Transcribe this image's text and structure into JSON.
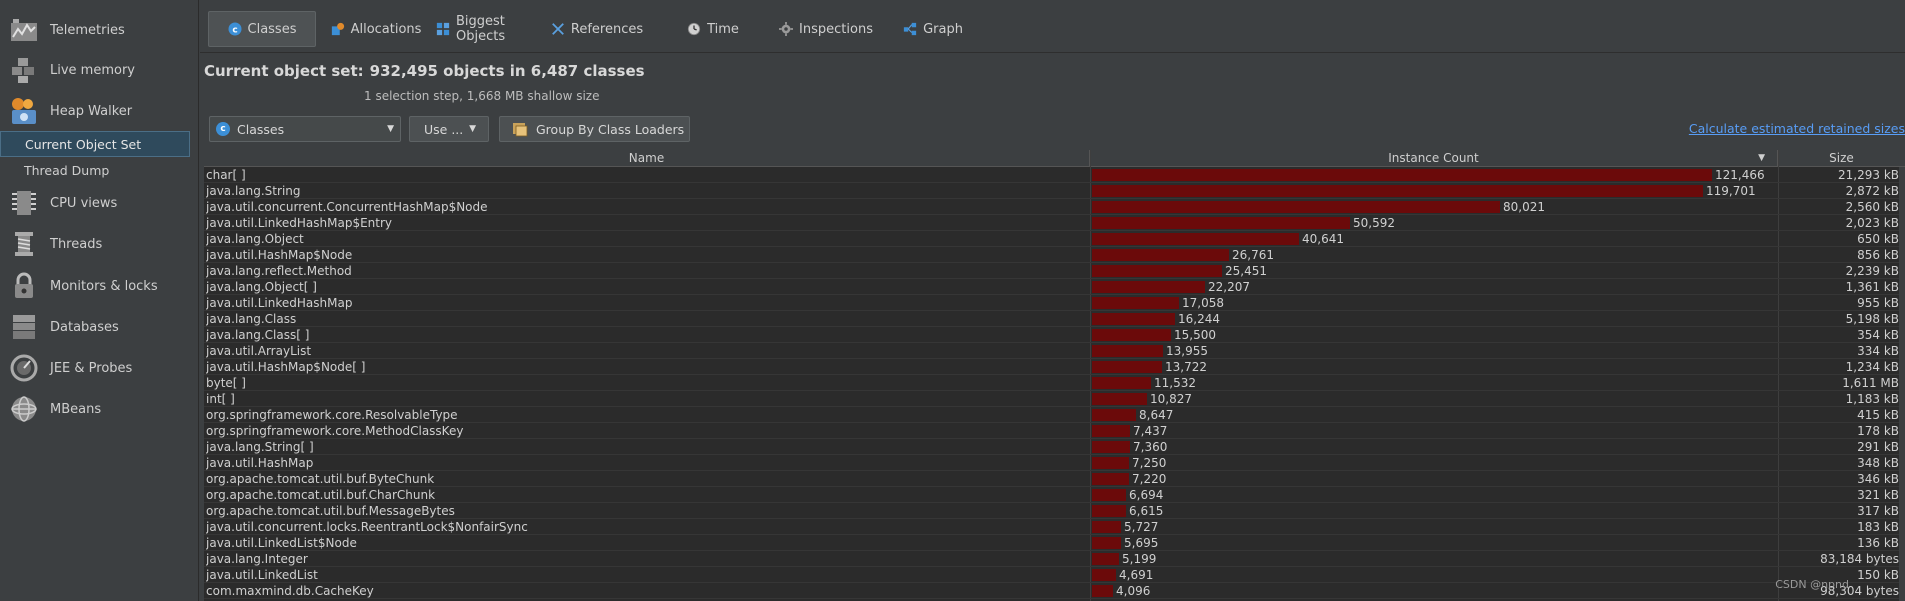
{
  "sidebar": {
    "items": [
      {
        "label": "Telemetries",
        "icon": "telemetries-icon"
      },
      {
        "label": "Live memory",
        "icon": "live-memory-icon"
      },
      {
        "label": "Heap Walker",
        "icon": "heap-walker-icon"
      },
      {
        "label": "CPU views",
        "icon": "cpu-views-icon"
      },
      {
        "label": "Threads",
        "icon": "threads-icon"
      },
      {
        "label": "Monitors & locks",
        "icon": "monitors-locks-icon"
      },
      {
        "label": "Databases",
        "icon": "databases-icon"
      },
      {
        "label": "JEE & Probes",
        "icon": "jee-probes-icon"
      },
      {
        "label": "MBeans",
        "icon": "mbeans-icon"
      }
    ],
    "subitems": [
      {
        "label": "Current Object Set",
        "selected": true
      },
      {
        "label": "Thread Dump",
        "selected": false
      }
    ]
  },
  "tabs": [
    {
      "label": "Classes",
      "icon": "classes-icon",
      "active": true
    },
    {
      "label": "Allocations",
      "icon": "allocations-icon"
    },
    {
      "label": "Biggest Objects",
      "icon": "biggest-objects-icon"
    },
    {
      "label": "References",
      "icon": "references-icon"
    },
    {
      "label": "Time",
      "icon": "time-icon"
    },
    {
      "label": "Inspections",
      "icon": "inspections-icon"
    },
    {
      "label": "Graph",
      "icon": "graph-icon"
    }
  ],
  "header": {
    "title_prefix": "Current object set:",
    "title_value": "932,495 objects in 6,487 classes",
    "subtitle": "1 selection step, 1,668 MB shallow size"
  },
  "toolbar": {
    "view_combo": "Classes",
    "use_button": "Use ...",
    "group_button": "Group By Class Loaders",
    "calc_link": "Calculate estimated retained sizes"
  },
  "table": {
    "columns": [
      "Name",
      "Instance Count",
      "Size"
    ],
    "max_count": 121466,
    "rows": [
      {
        "name": "char[ ]",
        "count": 121466,
        "count_label": "121,466",
        "size": "21,293 kB"
      },
      {
        "name": "java.lang.String",
        "count": 119701,
        "count_label": "119,701",
        "size": "2,872 kB"
      },
      {
        "name": "java.util.concurrent.ConcurrentHashMap$Node",
        "count": 80021,
        "count_label": "80,021",
        "size": "2,560 kB"
      },
      {
        "name": "java.util.LinkedHashMap$Entry",
        "count": 50592,
        "count_label": "50,592",
        "size": "2,023 kB"
      },
      {
        "name": "java.lang.Object",
        "count": 40641,
        "count_label": "40,641",
        "size": "650 kB"
      },
      {
        "name": "java.util.HashMap$Node",
        "count": 26761,
        "count_label": "26,761",
        "size": "856 kB"
      },
      {
        "name": "java.lang.reflect.Method",
        "count": 25451,
        "count_label": "25,451",
        "size": "2,239 kB"
      },
      {
        "name": "java.lang.Object[ ]",
        "count": 22207,
        "count_label": "22,207",
        "size": "1,361 kB"
      },
      {
        "name": "java.util.LinkedHashMap",
        "count": 17058,
        "count_label": "17,058",
        "size": "955 kB"
      },
      {
        "name": "java.lang.Class",
        "count": 16244,
        "count_label": "16,244",
        "size": "5,198 kB"
      },
      {
        "name": "java.lang.Class[ ]",
        "count": 15500,
        "count_label": "15,500",
        "size": "354 kB"
      },
      {
        "name": "java.util.ArrayList",
        "count": 13955,
        "count_label": "13,955",
        "size": "334 kB"
      },
      {
        "name": "java.util.HashMap$Node[ ]",
        "count": 13722,
        "count_label": "13,722",
        "size": "1,234 kB"
      },
      {
        "name": "byte[ ]",
        "count": 11532,
        "count_label": "11,532",
        "size": "1,611 MB"
      },
      {
        "name": "int[ ]",
        "count": 10827,
        "count_label": "10,827",
        "size": "1,183 kB"
      },
      {
        "name": "org.springframework.core.ResolvableType",
        "count": 8647,
        "count_label": "8,647",
        "size": "415 kB"
      },
      {
        "name": "org.springframework.core.MethodClassKey",
        "count": 7437,
        "count_label": "7,437",
        "size": "178 kB"
      },
      {
        "name": "java.lang.String[ ]",
        "count": 7360,
        "count_label": "7,360",
        "size": "291 kB"
      },
      {
        "name": "java.util.HashMap",
        "count": 7250,
        "count_label": "7,250",
        "size": "348 kB"
      },
      {
        "name": "org.apache.tomcat.util.buf.ByteChunk",
        "count": 7220,
        "count_label": "7,220",
        "size": "346 kB"
      },
      {
        "name": "org.apache.tomcat.util.buf.CharChunk",
        "count": 6694,
        "count_label": "6,694",
        "size": "321 kB"
      },
      {
        "name": "org.apache.tomcat.util.buf.MessageBytes",
        "count": 6615,
        "count_label": "6,615",
        "size": "317 kB"
      },
      {
        "name": "java.util.concurrent.locks.ReentrantLock$NonfairSync",
        "count": 5727,
        "count_label": "5,727",
        "size": "183 kB"
      },
      {
        "name": "java.util.LinkedList$Node",
        "count": 5695,
        "count_label": "5,695",
        "size": "136 kB"
      },
      {
        "name": "java.lang.Integer",
        "count": 5199,
        "count_label": "5,199",
        "size": "83,184 bytes"
      },
      {
        "name": "java.util.LinkedList",
        "count": 4691,
        "count_label": "4,691",
        "size": "150 kB"
      },
      {
        "name": "com.maxmind.db.CacheKey",
        "count": 4096,
        "count_label": "4,096",
        "size": "98,304 bytes"
      }
    ]
  },
  "colors": {
    "bar": "#6b0a0a",
    "link": "#589df6",
    "selection": "#2f4a5c"
  },
  "watermark": "CSDN @npnd"
}
